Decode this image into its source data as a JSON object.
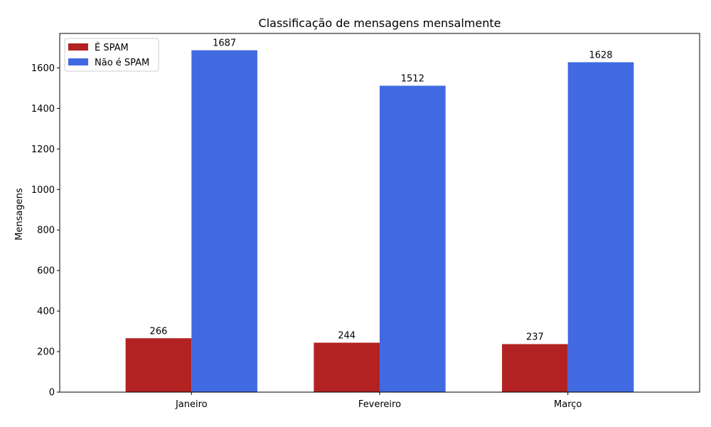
{
  "chart_data": {
    "type": "bar",
    "title": "Classificação de mensagens mensalmente",
    "xlabel": "",
    "ylabel": "Mensagens",
    "categories": [
      "Janeiro",
      "Fevereiro",
      "Março"
    ],
    "series": [
      {
        "name": "É SPAM",
        "values": [
          266,
          244,
          237
        ],
        "color": "#b22222"
      },
      {
        "name": "Não é SPAM",
        "values": [
          1687,
          1512,
          1628
        ],
        "color": "#4169e1"
      }
    ],
    "ylim": [
      0,
      1770
    ],
    "yticks": [
      0,
      200,
      400,
      600,
      800,
      1000,
      1200,
      1400,
      1600
    ],
    "legend_position": "top-left",
    "grid": false
  }
}
